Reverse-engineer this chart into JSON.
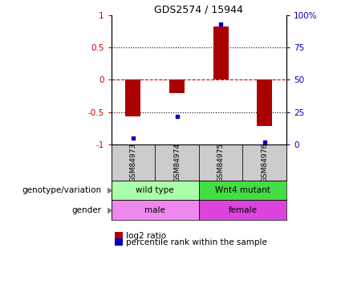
{
  "title": "GDS2574 / 15944",
  "samples": [
    "GSM84973",
    "GSM84974",
    "GSM84975",
    "GSM84976"
  ],
  "log2_ratio": [
    -0.57,
    -0.2,
    0.82,
    -0.72
  ],
  "percentile_rank": [
    5,
    22,
    93,
    2
  ],
  "ylim": [
    -1,
    1
  ],
  "left_yticks": [
    -1,
    -0.5,
    0,
    0.5,
    1
  ],
  "right_yticks": [
    0,
    25,
    50,
    75,
    100
  ],
  "genotype_labels": [
    {
      "label": "wild type",
      "cols": [
        0,
        1
      ],
      "color": "#AAFFAA"
    },
    {
      "label": "Wnt4 mutant",
      "cols": [
        2,
        3
      ],
      "color": "#44DD44"
    }
  ],
  "gender_labels": [
    {
      "label": "male",
      "cols": [
        0,
        1
      ],
      "color": "#EE88EE"
    },
    {
      "label": "female",
      "cols": [
        2,
        3
      ],
      "color": "#DD44DD"
    }
  ],
  "bar_color": "#AA0000",
  "dot_color": "#0000BB",
  "zero_line_color": "#CC0000",
  "grid_color": "#000000",
  "left_tick_color": "#CC0000",
  "right_tick_color": "#0000BB",
  "sample_box_color": "#CCCCCC",
  "row_label_genotype": "genotype/variation",
  "row_label_gender": "gender",
  "legend_log2": "log2 ratio",
  "legend_pct": "percentile rank within the sample",
  "bar_width": 0.35
}
